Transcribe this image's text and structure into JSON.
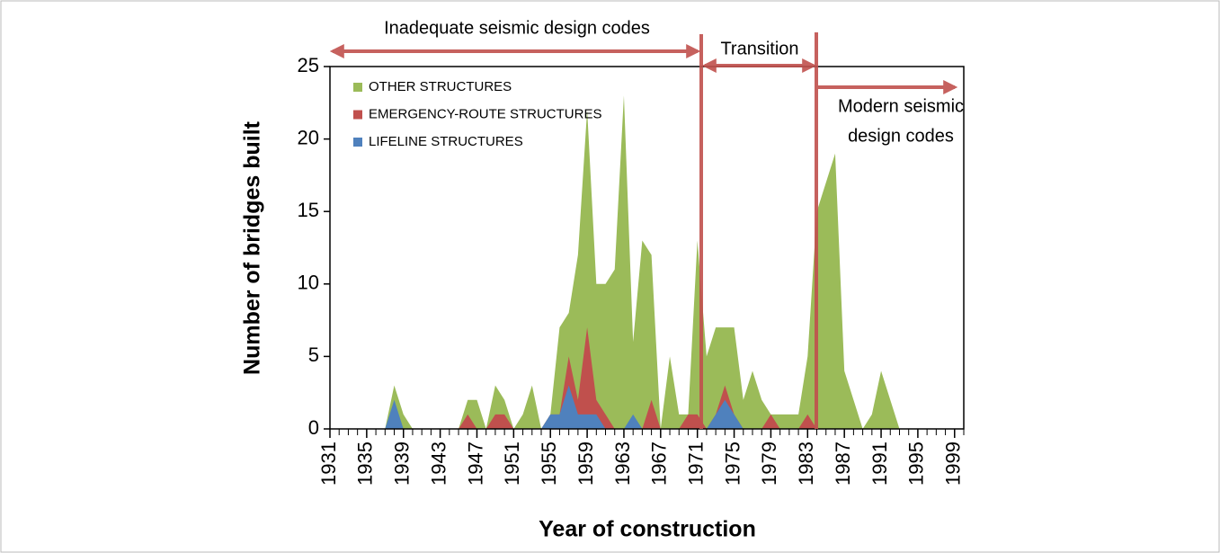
{
  "chart_data": {
    "type": "area",
    "x_label": "Year of construction",
    "y_label": "Number of bridges built",
    "x": [
      1931,
      1932,
      1933,
      1934,
      1935,
      1936,
      1937,
      1938,
      1939,
      1940,
      1941,
      1942,
      1943,
      1944,
      1945,
      1946,
      1947,
      1948,
      1949,
      1950,
      1951,
      1952,
      1953,
      1954,
      1955,
      1956,
      1957,
      1958,
      1959,
      1960,
      1961,
      1962,
      1963,
      1964,
      1965,
      1966,
      1967,
      1968,
      1969,
      1970,
      1971,
      1972,
      1973,
      1974,
      1975,
      1976,
      1977,
      1978,
      1979,
      1980,
      1981,
      1982,
      1983,
      1984,
      1985,
      1986,
      1987,
      1988,
      1989,
      1990,
      1991,
      1992,
      1993,
      1994,
      1995,
      1996,
      1997,
      1998,
      1999,
      2000
    ],
    "series": [
      {
        "name": "OTHER STRUCTURES",
        "color": "#9bbb59",
        "values": [
          0,
          0,
          0,
          0,
          0,
          0,
          0,
          3,
          1,
          0,
          0,
          0,
          0,
          0,
          0,
          2,
          2,
          0,
          3,
          2,
          0,
          1,
          3,
          0,
          1,
          7,
          8,
          12,
          22,
          10,
          10,
          11,
          23,
          6,
          13,
          12,
          0,
          5,
          1,
          1,
          13,
          5,
          7,
          7,
          7,
          2,
          4,
          2,
          1,
          1,
          1,
          1,
          5,
          15,
          17,
          19,
          4,
          2,
          0,
          1,
          4,
          2,
          0,
          0,
          0,
          0,
          0,
          0,
          0,
          0
        ]
      },
      {
        "name": "EMERGENCY-ROUTE STRUCTURES",
        "color": "#c0504d",
        "values": [
          0,
          0,
          0,
          0,
          0,
          0,
          0,
          0,
          0,
          0,
          0,
          0,
          0,
          0,
          0,
          1,
          0,
          0,
          1,
          1,
          0,
          0,
          0,
          0,
          1,
          1,
          5,
          2,
          7,
          2,
          1,
          0,
          0,
          0,
          0,
          2,
          0,
          0,
          0,
          1,
          1,
          0,
          1,
          3,
          1,
          0,
          0,
          0,
          1,
          0,
          0,
          0,
          1,
          0,
          0,
          0,
          0,
          0,
          0,
          0,
          0,
          0,
          0,
          0,
          0,
          0,
          0,
          0,
          0,
          0
        ]
      },
      {
        "name": "LIFELINE STRUCTURES",
        "color": "#4f81bd",
        "values": [
          0,
          0,
          0,
          0,
          0,
          0,
          0,
          2,
          0,
          0,
          0,
          0,
          0,
          0,
          0,
          0,
          0,
          0,
          0,
          0,
          0,
          0,
          0,
          0,
          1,
          1,
          3,
          1,
          1,
          1,
          0,
          0,
          0,
          1,
          0,
          0,
          0,
          0,
          0,
          0,
          0,
          0,
          1,
          2,
          1,
          0,
          0,
          0,
          0,
          0,
          0,
          0,
          0,
          0,
          0,
          0,
          0,
          0,
          0,
          0,
          0,
          0,
          0,
          0,
          0,
          0,
          0,
          0,
          0,
          0
        ]
      }
    ],
    "xlim": [
      1931,
      2000
    ],
    "xticks": [
      1931,
      1935,
      1939,
      1943,
      1947,
      1951,
      1955,
      1959,
      1963,
      1967,
      1971,
      1975,
      1979,
      1983,
      1987,
      1991,
      1995,
      1999
    ],
    "ylim": [
      0,
      25
    ],
    "yticks": [
      0,
      5,
      10,
      15,
      20,
      25
    ],
    "legend": "upper left",
    "annotations": [
      "Inadequate seismic design codes",
      "Transition",
      "Modern seismic",
      "design codes"
    ]
  }
}
